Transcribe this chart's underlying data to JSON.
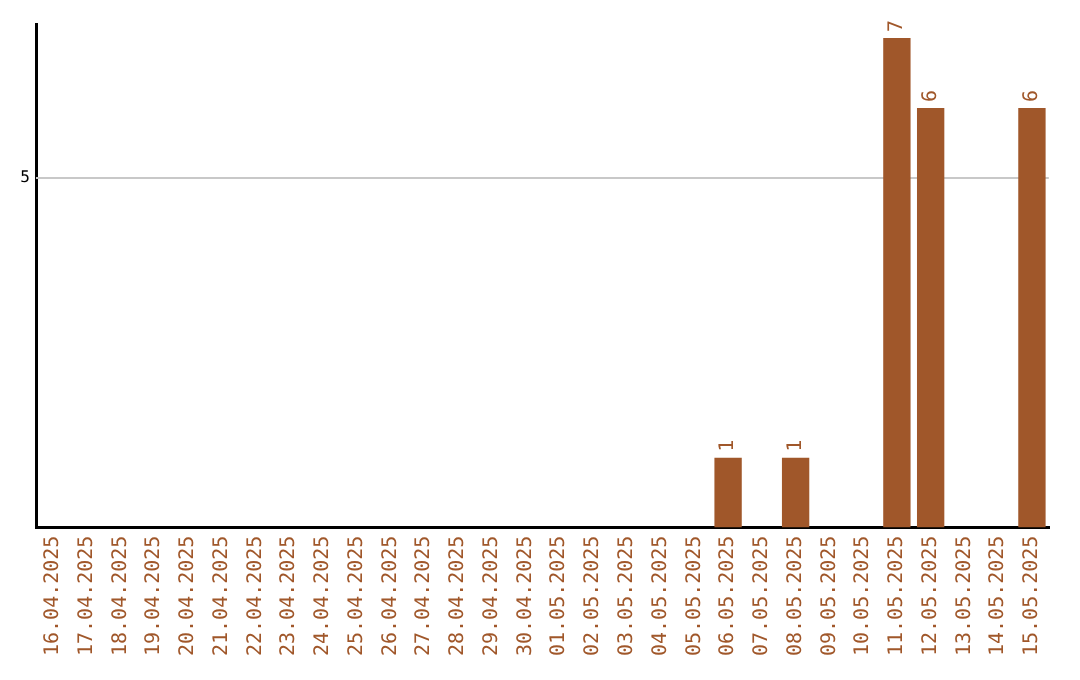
{
  "chart_data": {
    "type": "bar",
    "categories": [
      "16.04.2025",
      "17.04.2025",
      "18.04.2025",
      "19.04.2025",
      "20.04.2025",
      "21.04.2025",
      "22.04.2025",
      "23.04.2025",
      "24.04.2025",
      "25.04.2025",
      "26.04.2025",
      "27.04.2025",
      "28.04.2025",
      "29.04.2025",
      "30.04.2025",
      "01.05.2025",
      "02.05.2025",
      "03.05.2025",
      "04.05.2025",
      "05.05.2025",
      "06.05.2025",
      "07.05.2025",
      "08.05.2025",
      "09.05.2025",
      "10.05.2025",
      "11.05.2025",
      "12.05.2025",
      "13.05.2025",
      "14.05.2025",
      "15.05.2025"
    ],
    "values": [
      null,
      null,
      null,
      null,
      null,
      null,
      null,
      null,
      null,
      null,
      null,
      null,
      null,
      null,
      null,
      null,
      null,
      null,
      null,
      null,
      1,
      null,
      1,
      null,
      null,
      7,
      6,
      null,
      null,
      6
    ],
    "data_labels": true,
    "color": "#a0572a",
    "ylim": [
      0,
      7.2
    ],
    "ref_lines": [
      {
        "axis": "y",
        "value": 5,
        "label": "5",
        "color": "#c8c8c8"
      }
    ],
    "legend": false
  }
}
